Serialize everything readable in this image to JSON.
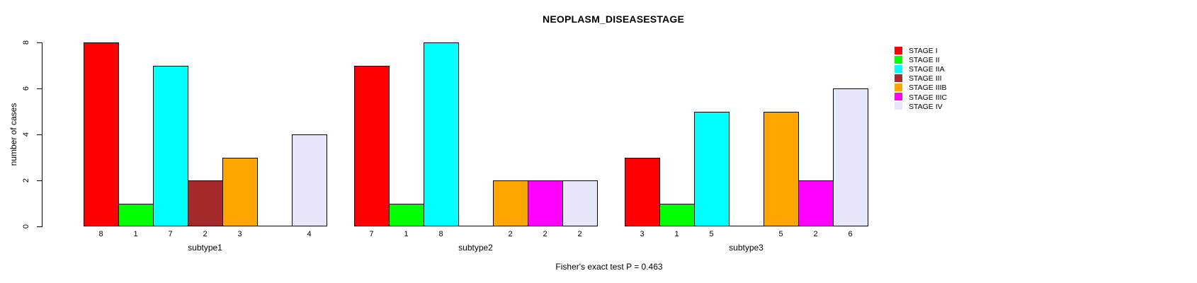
{
  "chart_data": {
    "type": "bar",
    "title": "NEOPLASM_DISEASESTAGE",
    "ylabel": "number of cases",
    "ylim": [
      0,
      8
    ],
    "yticks": [
      0,
      2,
      4,
      6,
      8
    ],
    "grid": false,
    "legend_position": "right",
    "bar_value_labels": "shown under each bar; hidden when value is 0",
    "legend": [
      {
        "label": "STAGE I",
        "color": "#FF0000"
      },
      {
        "label": "STAGE II",
        "color": "#00FF00"
      },
      {
        "label": "STAGE IIA",
        "color": "#00FFFF"
      },
      {
        "label": "STAGE III",
        "color": "#A52A2A"
      },
      {
        "label": "STAGE IIIB",
        "color": "#FFA500"
      },
      {
        "label": "STAGE IIIC",
        "color": "#FF00FF"
      },
      {
        "label": "STAGE IV",
        "color": "#E6E6FA"
      }
    ],
    "groups": [
      {
        "label": "subtype1",
        "values": [
          8,
          1,
          7,
          2,
          3,
          0,
          4
        ]
      },
      {
        "label": "subtype2",
        "values": [
          7,
          1,
          8,
          0,
          2,
          2,
          2
        ]
      },
      {
        "label": "subtype3",
        "values": [
          3,
          1,
          5,
          0,
          5,
          2,
          6
        ]
      }
    ],
    "footer": "Fisher's exact test P = 0.463",
    "colors": {
      "background": "#FFFFFF",
      "axis": "#000000",
      "bar_border": "#000000",
      "text": "#000000"
    }
  }
}
